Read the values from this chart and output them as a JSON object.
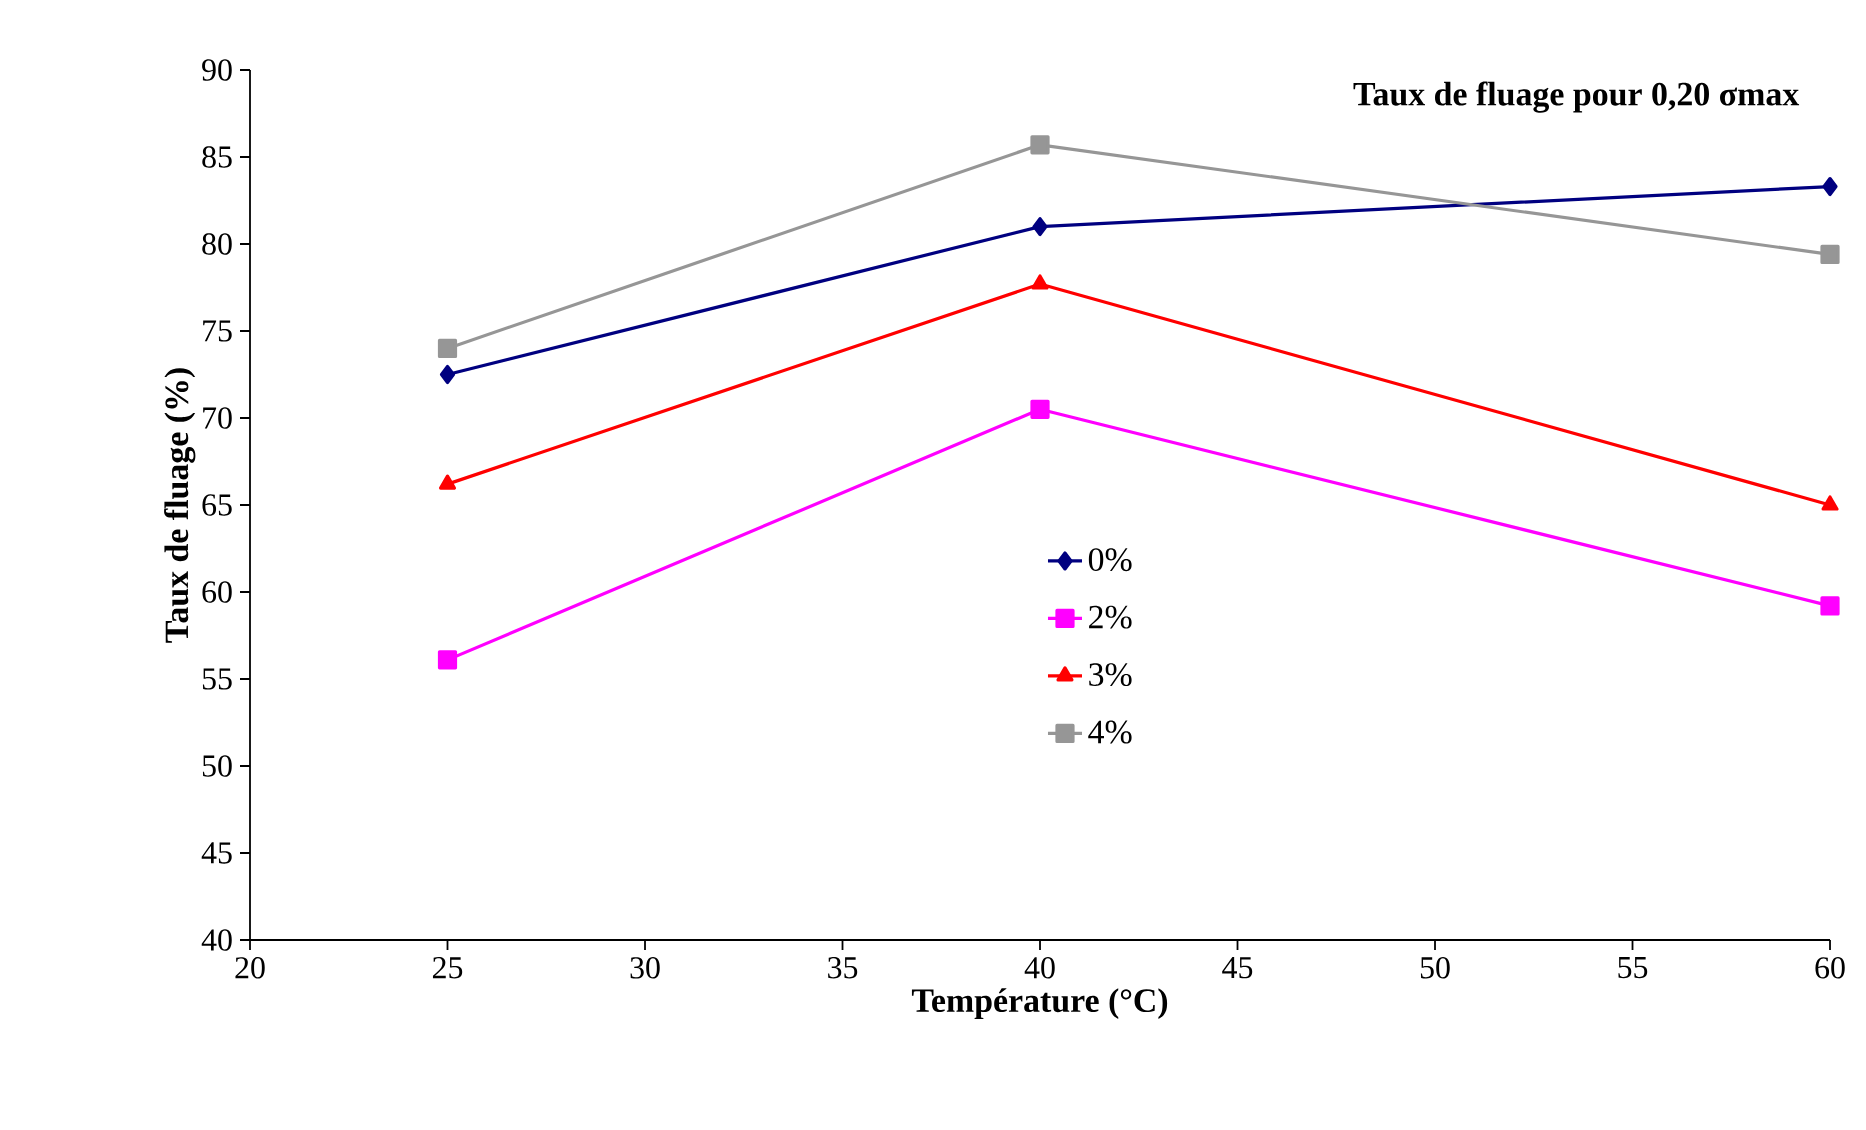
{
  "chart_data": {
    "type": "line",
    "title": "Taux de fluage pour 0,20 σmax",
    "xlabel": "Température (°C)",
    "ylabel": "Taux de fluage (%)",
    "x": [
      25,
      40,
      60
    ],
    "series": [
      {
        "name": "0%",
        "color": "#000080",
        "marker": "diamond",
        "values": [
          72.5,
          81,
          83.3
        ]
      },
      {
        "name": "2%",
        "color": "#ff00ff",
        "marker": "square",
        "values": [
          56.1,
          70.5,
          59.2
        ]
      },
      {
        "name": "3%",
        "color": "#ff0000",
        "marker": "triangle",
        "values": [
          66.2,
          77.7,
          65
        ]
      },
      {
        "name": "4%",
        "color": "#969696",
        "marker": "square",
        "values": [
          74,
          85.7,
          79.4
        ]
      }
    ],
    "xlim": [
      20,
      60
    ],
    "xticks": [
      20,
      25,
      30,
      35,
      40,
      45,
      50,
      55,
      60
    ],
    "ylim": [
      40,
      90
    ],
    "yticks": [
      40,
      45,
      50,
      55,
      60,
      65,
      70,
      75,
      80,
      85,
      90
    ],
    "legend": "center"
  }
}
